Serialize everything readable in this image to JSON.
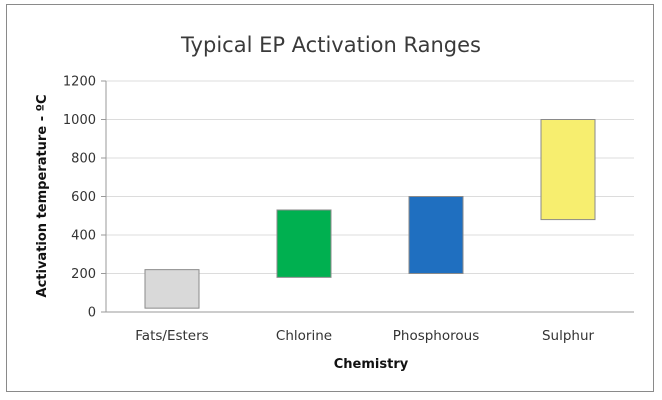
{
  "chart_data": {
    "type": "bar",
    "subtype": "floating-range",
    "title": "Typical EP Activation Ranges",
    "xlabel": "Chemistry",
    "ylabel": "Activation temperature - ºC",
    "ylim": [
      0,
      1200
    ],
    "yticks": [
      "0",
      "200",
      "400",
      "600",
      "800",
      "1000",
      "1200"
    ],
    "ytick_values": [
      0,
      200,
      400,
      600,
      800,
      1000,
      1200
    ],
    "grid": true,
    "legend": "none",
    "categories": [
      "Fats/Esters",
      "Chlorine",
      "Phosphorous",
      "Sulphur"
    ],
    "ranges": [
      {
        "low": 20,
        "high": 220
      },
      {
        "low": 180,
        "high": 530
      },
      {
        "low": 200,
        "high": 600
      },
      {
        "low": 480,
        "high": 1000
      }
    ],
    "colors": [
      "#d9d9d9",
      "#00b050",
      "#1f6fc0",
      "#f7ee6f"
    ]
  }
}
